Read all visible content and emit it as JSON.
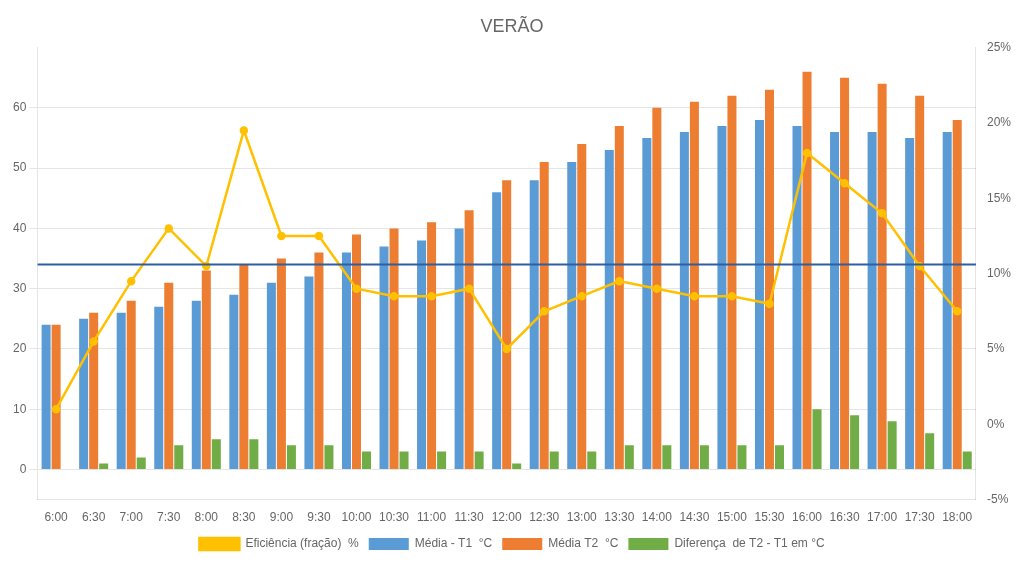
{
  "chart_data": {
    "type": "bar",
    "title": "VERÃO",
    "categories": [
      "6:00",
      "6:30",
      "7:00",
      "7:30",
      "8:00",
      "8:30",
      "9:00",
      "9:30",
      "10:00",
      "10:30",
      "11:00",
      "11:30",
      "12:00",
      "12:30",
      "13:00",
      "13:30",
      "14:00",
      "14:30",
      "15:00",
      "15:30",
      "16:00",
      "16:30",
      "17:00",
      "17:30",
      "18:00"
    ],
    "series": [
      {
        "name": "Média - T1  °C",
        "color": "#5B9BD5",
        "values": [
          24,
          25,
          26,
          27,
          28,
          29,
          31,
          32,
          36,
          37,
          38,
          40,
          46,
          48,
          51,
          53,
          55,
          56,
          57,
          58,
          57,
          56,
          56,
          55,
          56
        ]
      },
      {
        "name": "Média T2  °C",
        "color": "#ED7D31",
        "values": [
          24,
          26,
          28,
          31,
          33,
          34,
          35,
          36,
          39,
          40,
          41,
          43,
          48,
          51,
          54,
          57,
          60,
          61,
          62,
          63,
          66,
          65,
          64,
          62,
          58
        ]
      },
      {
        "name": "Diferença  de T2 - T1 em °C",
        "color": "#70AD47",
        "values": [
          0,
          1,
          2,
          4,
          5,
          5,
          4,
          4,
          3,
          3,
          3,
          3,
          1,
          3,
          3,
          4,
          4,
          4,
          4,
          4,
          10,
          9,
          8,
          6,
          3
        ]
      },
      {
        "name": "Eficiência (fração)  %",
        "type": "line",
        "color": "#FFC000",
        "axis": "y2",
        "values": [
          1.0,
          5.5,
          9.5,
          13.0,
          10.5,
          19.5,
          12.5,
          12.5,
          9.0,
          8.5,
          8.5,
          9.0,
          5.0,
          7.5,
          8.5,
          9.5,
          9.0,
          8.5,
          8.5,
          8.0,
          18.0,
          16.0,
          14.0,
          10.5,
          7.5
        ]
      }
    ],
    "ylim": [
      -5,
      70
    ],
    "yticks": [
      0,
      10,
      20,
      30,
      40,
      50,
      60
    ],
    "y2lim": [
      -5,
      25
    ],
    "y2ticks": [
      {
        "value": -5,
        "label": "-5%"
      },
      {
        "value": 0,
        "label": "0%"
      },
      {
        "value": 5,
        "label": "5%"
      },
      {
        "value": 10,
        "label": "10%"
      },
      {
        "value": 15,
        "label": "15%"
      },
      {
        "value": 20,
        "label": "20%"
      },
      {
        "value": 25,
        "label": "25%"
      }
    ],
    "hline": {
      "value": 34,
      "color": "#2E5FA3"
    },
    "grid": true,
    "legend": "bottom"
  }
}
